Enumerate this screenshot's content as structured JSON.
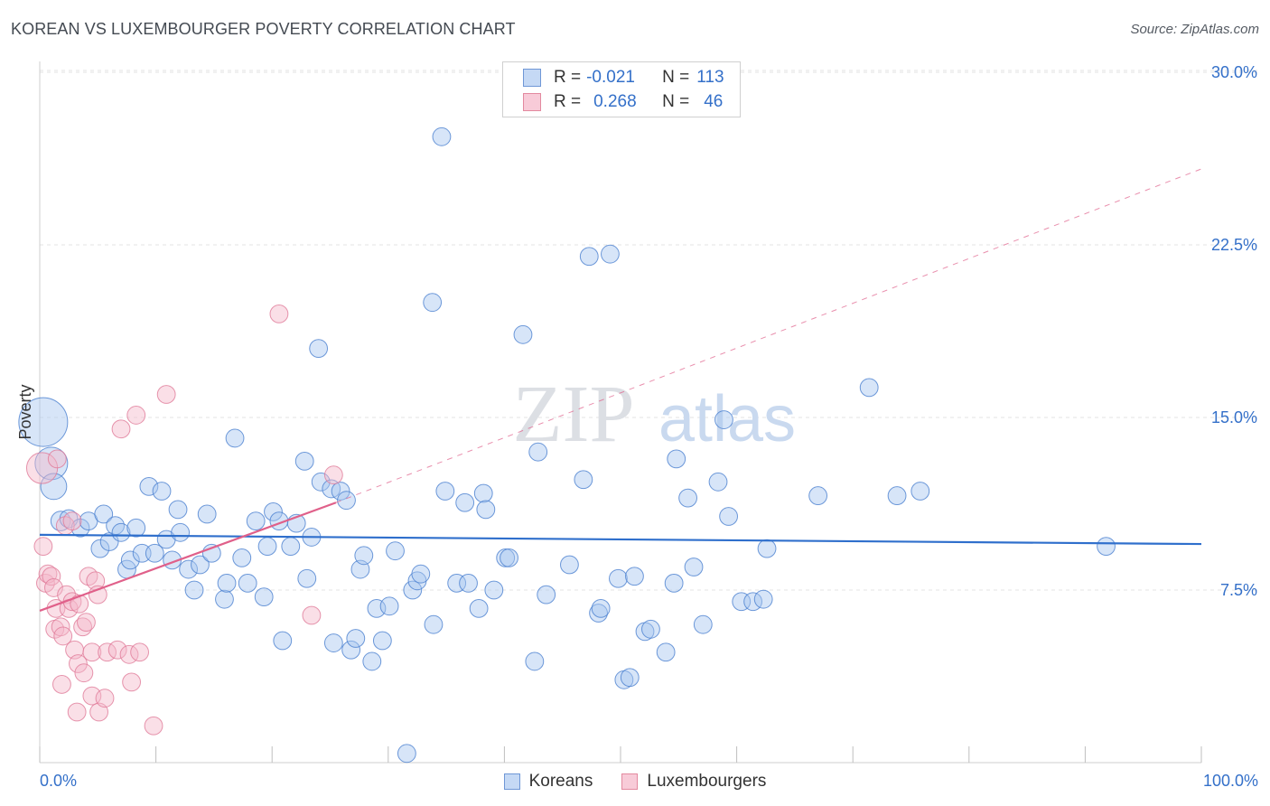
{
  "title": "KOREAN VS LUXEMBOURGER POVERTY CORRELATION CHART",
  "source": "Source: ZipAtlas.com",
  "watermark": {
    "zip": "ZIP",
    "atlas": "atlas"
  },
  "colors": {
    "blue_fill": "#a7c6ef",
    "blue_stroke": "#4a7fd0",
    "blue_line": "#2f6fcc",
    "pink_fill": "#f5b8c9",
    "pink_stroke": "#e07a98",
    "pink_line": "#e0608a",
    "axis_label": "#3470c9",
    "grid": "#e3e3e3"
  },
  "legend_box": {
    "rows": [
      {
        "r_label": "R =",
        "r_value": "-0.021",
        "n_label": "N =",
        "n_value": "113",
        "series": "blue"
      },
      {
        "r_label": "R =",
        "r_value": "0.268",
        "n_label": "N =",
        "n_value": "46",
        "series": "pink"
      }
    ]
  },
  "bottom_legend": [
    {
      "label": "Koreans",
      "series": "blue"
    },
    {
      "label": "Luxembourgers",
      "series": "pink"
    }
  ],
  "chart_data": {
    "type": "scatter",
    "title": "KOREAN VS LUXEMBOURGER POVERTY CORRELATION CHART",
    "xlabel": "",
    "ylabel": "Poverty",
    "xlim": [
      0,
      100
    ],
    "ylim": [
      0,
      30
    ],
    "x_tick_labels": [
      {
        "value": 0,
        "label": "0.0%"
      },
      {
        "value": 100,
        "label": "100.0%"
      }
    ],
    "y_tick_labels": [
      {
        "value": 7.5,
        "label": "7.5%"
      },
      {
        "value": 15,
        "label": "15.0%"
      },
      {
        "value": 22.5,
        "label": "22.5%"
      },
      {
        "value": 30,
        "label": "30.0%"
      }
    ],
    "x_minor_ticks": [
      0,
      10,
      20,
      30,
      40,
      50,
      60,
      70,
      80,
      90,
      100
    ],
    "series": [
      {
        "name": "Koreans",
        "color": "blue",
        "trend": {
          "x0": 0,
          "y0": 9.9,
          "x1": 100,
          "y1": 9.5
        },
        "points": [
          [
            0.3,
            14.8,
            3
          ],
          [
            1.0,
            13.0,
            2
          ],
          [
            1.2,
            12.0,
            1.6
          ],
          [
            1.8,
            10.5,
            1.2
          ],
          [
            2.5,
            10.6,
            1.1
          ],
          [
            3.5,
            10.2,
            1.1
          ],
          [
            4.2,
            10.5,
            1.1
          ],
          [
            5.2,
            9.3,
            1.1
          ],
          [
            5.5,
            10.8,
            1.1
          ],
          [
            6.0,
            9.6,
            1.1
          ],
          [
            6.5,
            10.3,
            1.1
          ],
          [
            7.0,
            10.0,
            1.1
          ],
          [
            7.5,
            8.4,
            1.1
          ],
          [
            7.8,
            8.8,
            1.1
          ],
          [
            8.3,
            10.2,
            1.1
          ],
          [
            8.8,
            9.1,
            1.1
          ],
          [
            9.4,
            12.0,
            1.1
          ],
          [
            9.9,
            9.1,
            1.1
          ],
          [
            10.5,
            11.8,
            1.1
          ],
          [
            10.9,
            9.7,
            1.1
          ],
          [
            11.4,
            8.8,
            1.1
          ],
          [
            11.9,
            11.0,
            1.1
          ],
          [
            12.1,
            10.0,
            1.1
          ],
          [
            12.8,
            8.4,
            1.1
          ],
          [
            13.3,
            7.5,
            1.1
          ],
          [
            13.8,
            8.6,
            1.1
          ],
          [
            14.4,
            10.8,
            1.1
          ],
          [
            14.8,
            9.1,
            1.1
          ],
          [
            15.9,
            7.1,
            1.1
          ],
          [
            16.1,
            7.8,
            1.1
          ],
          [
            16.8,
            14.1,
            1.1
          ],
          [
            17.4,
            8.9,
            1.1
          ],
          [
            17.9,
            7.8,
            1.1
          ],
          [
            18.6,
            10.5,
            1.1
          ],
          [
            19.3,
            7.2,
            1.1
          ],
          [
            19.6,
            9.4,
            1.1
          ],
          [
            20.1,
            10.9,
            1.1
          ],
          [
            20.6,
            10.5,
            1.1
          ],
          [
            20.9,
            5.3,
            1.1
          ],
          [
            21.6,
            9.4,
            1.1
          ],
          [
            22.1,
            10.4,
            1.1
          ],
          [
            22.8,
            13.1,
            1.1
          ],
          [
            23.0,
            8.0,
            1.1
          ],
          [
            23.4,
            9.8,
            1.1
          ],
          [
            24.0,
            18.0,
            1.1
          ],
          [
            24.2,
            12.2,
            1.1
          ],
          [
            25.1,
            11.9,
            1.1
          ],
          [
            25.3,
            5.2,
            1.1
          ],
          [
            25.9,
            11.8,
            1.1
          ],
          [
            26.4,
            11.4,
            1.1
          ],
          [
            26.8,
            4.9,
            1.1
          ],
          [
            27.2,
            5.4,
            1.1
          ],
          [
            27.6,
            8.4,
            1.1
          ],
          [
            27.9,
            9.0,
            1.1
          ],
          [
            28.6,
            4.4,
            1.1
          ],
          [
            29.0,
            6.7,
            1.1
          ],
          [
            29.5,
            5.3,
            1.1
          ],
          [
            30.1,
            6.8,
            1.1
          ],
          [
            30.6,
            9.2,
            1.1
          ],
          [
            31.6,
            0.4,
            1.1
          ],
          [
            32.1,
            7.5,
            1.1
          ],
          [
            32.5,
            7.9,
            1.1
          ],
          [
            32.8,
            8.2,
            1.1
          ],
          [
            33.8,
            20.0,
            1.1
          ],
          [
            33.9,
            6.0,
            1.1
          ],
          [
            34.6,
            27.2,
            1.1
          ],
          [
            34.9,
            11.8,
            1.1
          ],
          [
            35.9,
            7.8,
            1.1
          ],
          [
            36.6,
            11.3,
            1.1
          ],
          [
            36.9,
            7.8,
            1.1
          ],
          [
            37.8,
            6.7,
            1.1
          ],
          [
            38.2,
            11.7,
            1.1
          ],
          [
            38.4,
            11.0,
            1.1
          ],
          [
            39.1,
            7.5,
            1.1
          ],
          [
            40.1,
            8.9,
            1.1
          ],
          [
            40.4,
            8.9,
            1.1
          ],
          [
            41.6,
            18.6,
            1.1
          ],
          [
            42.6,
            4.4,
            1.1
          ],
          [
            42.9,
            13.5,
            1.1
          ],
          [
            43.6,
            7.3,
            1.1
          ],
          [
            45.6,
            8.6,
            1.1
          ],
          [
            46.8,
            12.3,
            1.1
          ],
          [
            47.3,
            22.0,
            1.1
          ],
          [
            48.1,
            6.5,
            1.1
          ],
          [
            48.3,
            6.7,
            1.1
          ],
          [
            49.1,
            22.1,
            1.1
          ],
          [
            49.8,
            8.0,
            1.1
          ],
          [
            50.3,
            3.6,
            1.1
          ],
          [
            50.8,
            3.7,
            1.1
          ],
          [
            51.2,
            8.1,
            1.1
          ],
          [
            52.1,
            5.7,
            1.1
          ],
          [
            52.6,
            5.8,
            1.1
          ],
          [
            53.9,
            4.8,
            1.1
          ],
          [
            54.6,
            7.8,
            1.1
          ],
          [
            54.8,
            13.2,
            1.1
          ],
          [
            55.8,
            11.5,
            1.1
          ],
          [
            56.3,
            8.5,
            1.1
          ],
          [
            57.1,
            6.0,
            1.1
          ],
          [
            58.4,
            12.2,
            1.1
          ],
          [
            58.9,
            14.9,
            1.1
          ],
          [
            59.3,
            10.7,
            1.1
          ],
          [
            60.4,
            7.0,
            1.1
          ],
          [
            61.4,
            7.0,
            1.1
          ],
          [
            62.3,
            7.1,
            1.1
          ],
          [
            62.6,
            9.3,
            1.1
          ],
          [
            67.0,
            11.6,
            1.1
          ],
          [
            71.4,
            16.3,
            1.1
          ],
          [
            73.8,
            11.6,
            1.1
          ],
          [
            75.8,
            11.8,
            1.1
          ],
          [
            91.8,
            9.4,
            1.1
          ]
        ]
      },
      {
        "name": "Luxembourgers",
        "color": "pink",
        "trend": {
          "x0": 0,
          "y0": 6.6,
          "x1": 25.5,
          "y1": 11.3
        },
        "trend_extension": {
          "x0": 25.5,
          "y0": 11.3,
          "x1": 100,
          "y1": 25.8
        },
        "points": [
          [
            0.2,
            12.8,
            1.9
          ],
          [
            0.3,
            9.4,
            1.1
          ],
          [
            0.5,
            7.8,
            1.1
          ],
          [
            0.7,
            8.2,
            1.1
          ],
          [
            1.0,
            8.1,
            1.1
          ],
          [
            1.2,
            7.6,
            1.1
          ],
          [
            1.3,
            5.8,
            1.1
          ],
          [
            1.4,
            6.7,
            1.1
          ],
          [
            1.5,
            13.2,
            1.1
          ],
          [
            1.8,
            5.9,
            1.1
          ],
          [
            1.9,
            3.4,
            1.1
          ],
          [
            2.0,
            5.5,
            1.1
          ],
          [
            2.2,
            10.3,
            1.1
          ],
          [
            2.3,
            7.3,
            1.1
          ],
          [
            2.5,
            6.7,
            1.1
          ],
          [
            2.8,
            10.5,
            1.1
          ],
          [
            2.8,
            7.0,
            1.1
          ],
          [
            3.0,
            4.9,
            1.1
          ],
          [
            3.2,
            2.2,
            1.1
          ],
          [
            3.3,
            4.3,
            1.1
          ],
          [
            3.4,
            6.9,
            1.1
          ],
          [
            3.7,
            5.9,
            1.1
          ],
          [
            3.8,
            3.9,
            1.1
          ],
          [
            4.0,
            6.1,
            1.1
          ],
          [
            4.2,
            8.1,
            1.1
          ],
          [
            4.5,
            2.9,
            1.1
          ],
          [
            4.5,
            4.8,
            1.1
          ],
          [
            4.8,
            7.9,
            1.1
          ],
          [
            5.0,
            7.3,
            1.1
          ],
          [
            5.1,
            2.2,
            1.1
          ],
          [
            5.6,
            2.8,
            1.1
          ],
          [
            5.8,
            4.8,
            1.1
          ],
          [
            6.7,
            4.9,
            1.1
          ],
          [
            7.0,
            14.5,
            1.1
          ],
          [
            7.7,
            4.7,
            1.1
          ],
          [
            7.9,
            3.5,
            1.1
          ],
          [
            8.3,
            15.1,
            1.1
          ],
          [
            8.6,
            4.8,
            1.1
          ],
          [
            9.8,
            1.6,
            1.1
          ],
          [
            10.9,
            16.0,
            1.1
          ],
          [
            20.6,
            19.5,
            1.1
          ],
          [
            23.4,
            6.4,
            1.1
          ],
          [
            25.3,
            12.5,
            1.1
          ]
        ]
      }
    ]
  }
}
